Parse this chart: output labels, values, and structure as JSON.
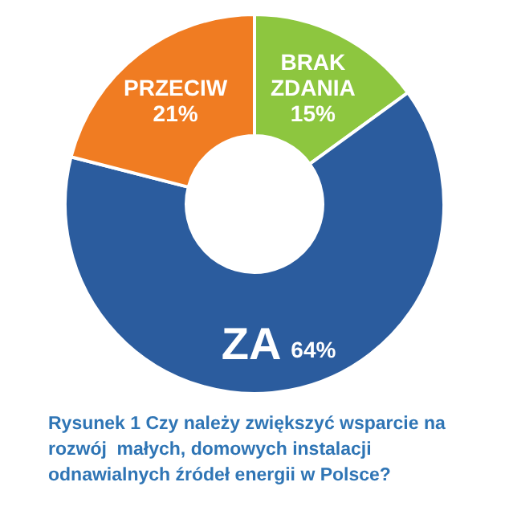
{
  "chart_data": {
    "type": "donut",
    "categories": [
      "BRAK ZDANIA",
      "ZA",
      "PRZECIW"
    ],
    "values": [
      15,
      64,
      21
    ],
    "value_labels": [
      "15%",
      "64%",
      "21%"
    ],
    "colors": [
      "#8dc63f",
      "#2b5c9e",
      "#f07c22"
    ],
    "legend": false,
    "annotations": [
      "Rysunek 1 Czy należy zwiększyć wsparcie na rozwój  małych, domowych instalacji odnawialnych źródeł energii w Polsce?"
    ]
  }
}
